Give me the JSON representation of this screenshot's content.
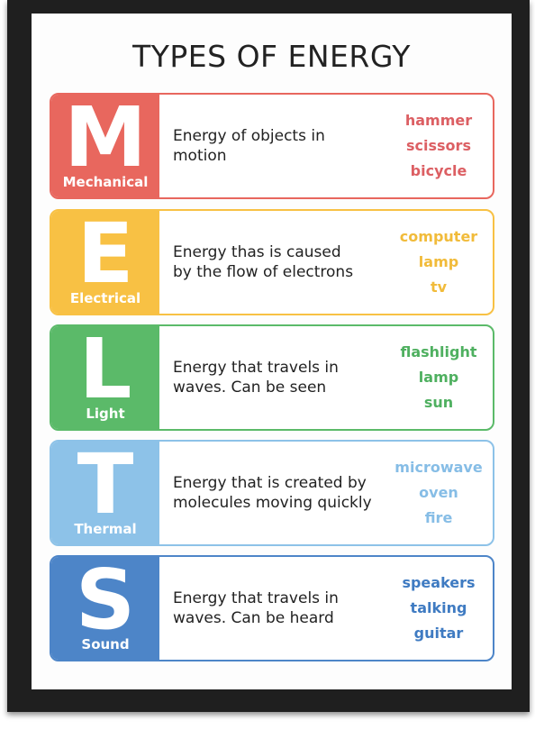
{
  "header": {
    "title": "TYPES OF ENERGY"
  },
  "rows": [
    {
      "letter": "M",
      "name": "Mechanical",
      "color": "#e8675e",
      "text_color": "#dc5f63",
      "description": [
        "Energy of objects in",
        "motion"
      ],
      "examples": [
        "hammer",
        "scissors",
        "bicycle"
      ]
    },
    {
      "letter": "E",
      "name": "Electrical",
      "color": "#f8c144",
      "text_color": "#f1bb3a",
      "description": [
        "Energy thas is caused",
        "by the flow of electrons"
      ],
      "examples": [
        "computer",
        "lamp",
        "tv"
      ]
    },
    {
      "letter": "L",
      "name": "Light",
      "color": "#5bba69",
      "text_color": "#4fb060",
      "description": [
        "Energy that travels in",
        "waves. Can be seen"
      ],
      "examples": [
        "flashlight",
        "lamp",
        "sun"
      ]
    },
    {
      "letter": "T",
      "name": "Thermal",
      "color": "#8dc2e8",
      "text_color": "#86bde6",
      "description": [
        "Energy that is created by",
        "molecules moving quickly"
      ],
      "examples": [
        "microwave",
        "oven",
        "fire"
      ]
    },
    {
      "letter": "S",
      "name": "Sound",
      "color": "#4d85c8",
      "text_color": "#3f7bc2",
      "description": [
        "Energy that travels in",
        "waves. Can be heard"
      ],
      "examples": [
        "speakers",
        "talking",
        "guitar"
      ]
    }
  ]
}
